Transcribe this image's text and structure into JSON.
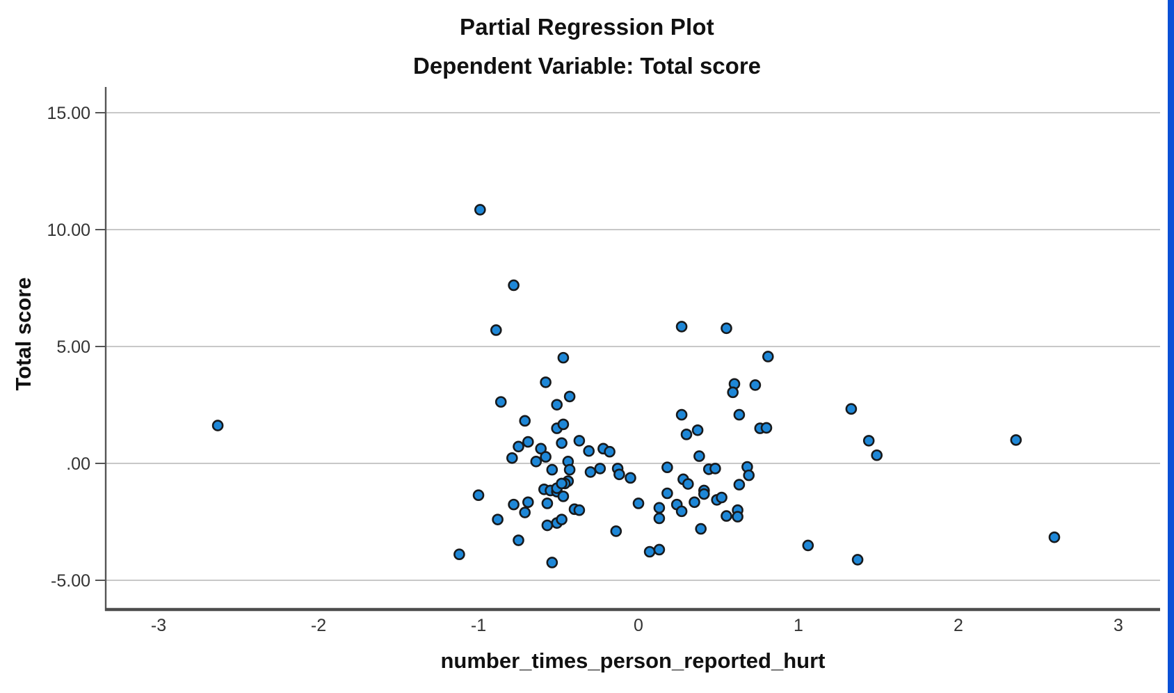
{
  "chart_data": {
    "type": "scatter",
    "title": "Partial Regression Plot",
    "subtitle": "Dependent Variable: Total score",
    "xlabel": "number_times_person_reported_hurt",
    "ylabel": "Total score",
    "xlim": [
      -3.33,
      3.26
    ],
    "ylim": [
      -6.25,
      16.1
    ],
    "x_ticks": [
      -3,
      -2,
      -1,
      0,
      1,
      2,
      3
    ],
    "x_tick_labels": [
      "-3",
      "-2",
      "-1",
      "0",
      "1",
      "2",
      "3"
    ],
    "y_ticks": [
      15,
      10,
      5,
      0,
      -5
    ],
    "y_tick_labels": [
      "15.00",
      "10.00",
      "5.00",
      ".00",
      "-5.00"
    ],
    "grid": "horizontal",
    "legend_position": "none",
    "marker_fill": "#1e87d7",
    "marker_stroke": "#17191b",
    "gridline_color": "#c8c8c8",
    "axis_color": "#555555",
    "points": [
      [
        -2.63,
        1.62
      ],
      [
        -0.99,
        10.85
      ],
      [
        -0.78,
        7.62
      ],
      [
        -0.89,
        5.7
      ],
      [
        -0.47,
        4.52
      ],
      [
        -0.58,
        3.47
      ],
      [
        -0.43,
        2.86
      ],
      [
        -0.51,
        2.51
      ],
      [
        -0.86,
        2.63
      ],
      [
        -0.71,
        1.82
      ],
      [
        -0.51,
        1.5
      ],
      [
        -0.47,
        1.67
      ],
      [
        -0.48,
        0.87
      ],
      [
        -0.37,
        0.97
      ],
      [
        -0.69,
        0.92
      ],
      [
        -0.75,
        0.72
      ],
      [
        -0.61,
        0.63
      ],
      [
        -0.79,
        0.23
      ],
      [
        -0.64,
        0.08
      ],
      [
        -0.58,
        0.28
      ],
      [
        -0.31,
        0.53
      ],
      [
        -0.22,
        0.63
      ],
      [
        -0.18,
        0.5
      ],
      [
        -0.44,
        0.08
      ],
      [
        -0.43,
        -0.27
      ],
      [
        -0.54,
        -0.27
      ],
      [
        -0.3,
        -0.37
      ],
      [
        -0.24,
        -0.22
      ],
      [
        -0.13,
        -0.22
      ],
      [
        -0.12,
        -0.47
      ],
      [
        -0.05,
        -0.62
      ],
      [
        -0.44,
        -0.76
      ],
      [
        -0.46,
        -0.86
      ],
      [
        -0.59,
        -1.11
      ],
      [
        -0.55,
        -1.16
      ],
      [
        -0.51,
        -1.21
      ],
      [
        -0.51,
        -1.06
      ],
      [
        -0.48,
        -0.86
      ],
      [
        -0.47,
        -1.41
      ],
      [
        -1.0,
        -1.36
      ],
      [
        -0.57,
        -1.71
      ],
      [
        -0.78,
        -1.76
      ],
      [
        -0.69,
        -1.66
      ],
      [
        -0.71,
        -2.1
      ],
      [
        -0.4,
        -1.96
      ],
      [
        -0.37,
        -2.0
      ],
      [
        -0.88,
        -2.4
      ],
      [
        0.0,
        -1.71
      ],
      [
        -0.51,
        -2.55
      ],
      [
        -0.48,
        -2.4
      ],
      [
        -0.57,
        -2.65
      ],
      [
        -0.14,
        -2.9
      ],
      [
        -0.75,
        -3.29
      ],
      [
        -1.12,
        -3.89
      ],
      [
        -0.54,
        -4.24
      ],
      [
        0.27,
        5.85
      ],
      [
        0.55,
        5.78
      ],
      [
        0.81,
        4.57
      ],
      [
        0.6,
        3.4
      ],
      [
        0.59,
        3.04
      ],
      [
        0.73,
        3.35
      ],
      [
        0.27,
        2.08
      ],
      [
        0.63,
        2.08
      ],
      [
        0.76,
        1.5
      ],
      [
        0.8,
        1.52
      ],
      [
        0.3,
        1.24
      ],
      [
        0.37,
        1.42
      ],
      [
        0.38,
        0.31
      ],
      [
        0.18,
        -0.17
      ],
      [
        0.44,
        -0.25
      ],
      [
        0.48,
        -0.22
      ],
      [
        0.68,
        -0.15
      ],
      [
        0.69,
        -0.51
      ],
      [
        0.28,
        -0.68
      ],
      [
        0.31,
        -0.88
      ],
      [
        0.63,
        -0.91
      ],
      [
        0.18,
        -1.28
      ],
      [
        0.41,
        -1.16
      ],
      [
        0.41,
        -1.31
      ],
      [
        0.49,
        -1.56
      ],
      [
        0.52,
        -1.46
      ],
      [
        0.13,
        -1.9
      ],
      [
        0.24,
        -1.76
      ],
      [
        0.27,
        -2.05
      ],
      [
        0.35,
        -1.66
      ],
      [
        0.13,
        -2.35
      ],
      [
        0.55,
        -2.25
      ],
      [
        0.62,
        -2.0
      ],
      [
        0.62,
        -2.28
      ],
      [
        0.39,
        -2.8
      ],
      [
        0.07,
        -3.78
      ],
      [
        0.13,
        -3.69
      ],
      [
        1.06,
        -3.51
      ],
      [
        1.33,
        2.33
      ],
      [
        1.44,
        0.97
      ],
      [
        1.49,
        0.35
      ],
      [
        1.37,
        -4.12
      ],
      [
        2.36,
        1.0
      ],
      [
        2.6,
        -3.16
      ]
    ]
  },
  "selection_bar": {
    "color": "#0a50d6"
  }
}
